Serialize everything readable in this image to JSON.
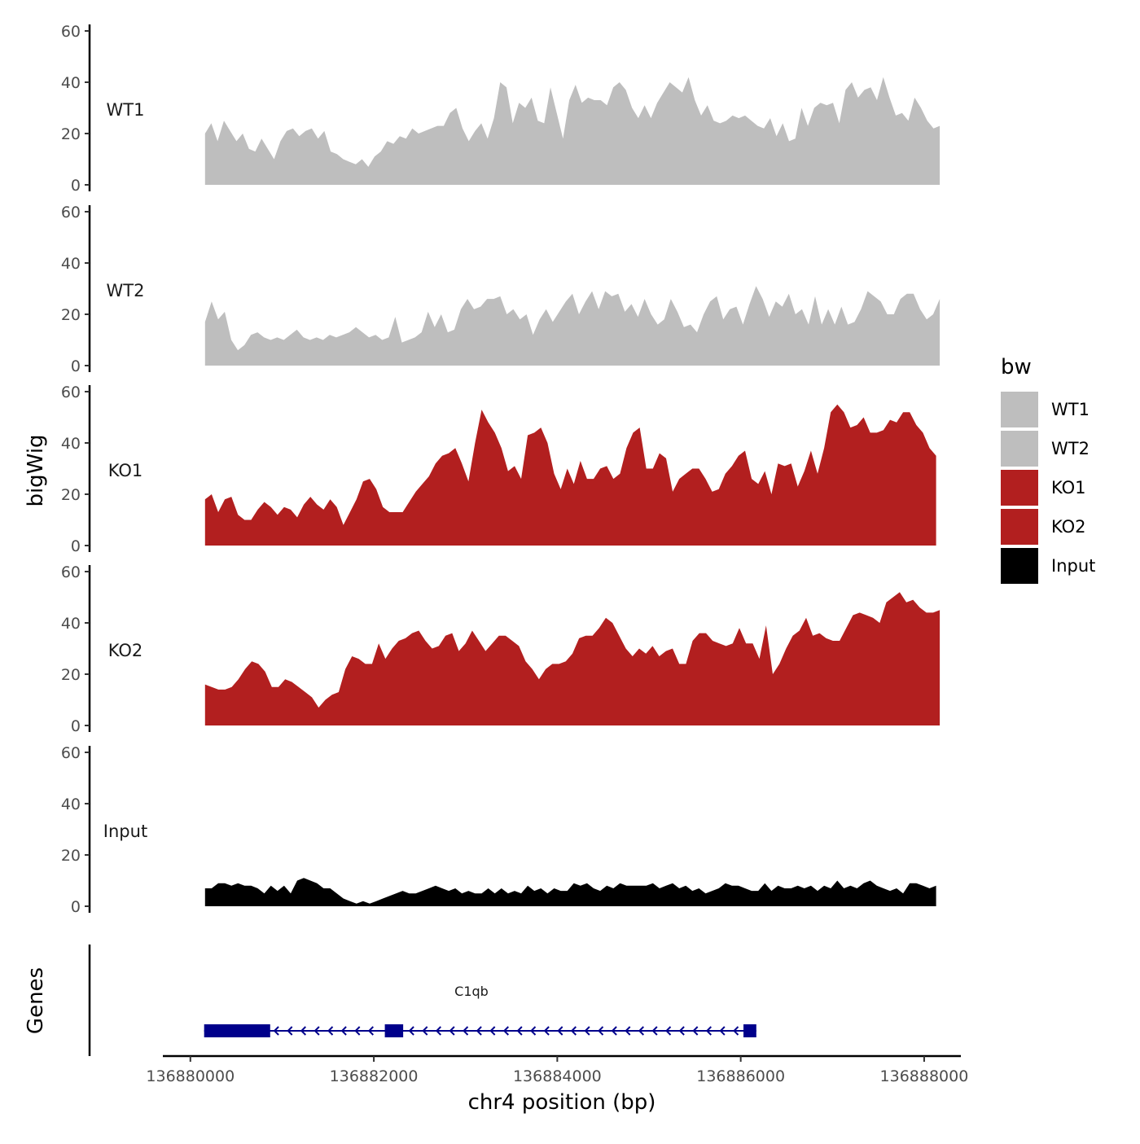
{
  "chart_data": {
    "type": "area",
    "ylabel": "bigWig",
    "xlabel": "chr4 position (bp)",
    "xlim": [
      136879700,
      136888400
    ],
    "ylim": [
      0,
      60
    ],
    "y_ticks": [
      "0",
      "20",
      "40",
      "60"
    ],
    "x_ticks": [
      {
        "value": 136880000,
        "label": "136880000"
      },
      {
        "value": 136882000,
        "label": "136882000"
      },
      {
        "value": 136884000,
        "label": "136884000"
      },
      {
        "value": 136886000,
        "label": "136886000"
      },
      {
        "value": 136888000,
        "label": "136888000"
      }
    ],
    "tracks": [
      {
        "name": "WT1",
        "color": "#bebebe",
        "x_start": 136880160,
        "x_end": 136888170,
        "values": [
          20,
          24,
          17,
          25,
          21,
          17,
          20,
          14,
          13,
          18,
          14,
          10,
          17,
          21,
          22,
          19,
          21,
          22,
          18,
          21,
          13,
          12,
          10,
          9,
          8,
          10,
          7,
          11,
          13,
          17,
          16,
          19,
          18,
          22,
          20,
          21,
          22,
          23,
          23,
          28,
          30,
          22,
          17,
          21,
          24,
          18,
          26,
          40,
          38,
          24,
          32,
          30,
          34,
          25,
          24,
          38,
          28,
          18,
          33,
          39,
          32,
          34,
          33,
          33,
          31,
          38,
          40,
          37,
          30,
          26,
          31,
          26,
          32,
          36,
          40,
          38,
          36,
          42,
          33,
          27,
          31,
          25,
          24,
          25,
          27,
          26,
          27,
          25,
          23,
          22,
          26,
          19,
          24,
          17,
          18,
          30,
          23,
          30,
          32,
          31,
          32,
          24,
          37,
          40,
          34,
          37,
          38,
          33,
          42,
          34,
          27,
          28,
          25,
          34,
          30,
          25,
          22,
          23
        ]
      },
      {
        "name": "WT2",
        "color": "#bebebe",
        "x_start": 136880160,
        "x_end": 136888170,
        "values": [
          17,
          25,
          18,
          21,
          10,
          6,
          8,
          12,
          13,
          11,
          10,
          11,
          10,
          12,
          14,
          11,
          10,
          11,
          10,
          12,
          11,
          12,
          13,
          15,
          13,
          11,
          12,
          10,
          11,
          19,
          9,
          10,
          11,
          13,
          21,
          15,
          20,
          13,
          14,
          22,
          26,
          22,
          23,
          26,
          26,
          27,
          20,
          22,
          18,
          20,
          12,
          18,
          22,
          17,
          21,
          25,
          28,
          20,
          25,
          29,
          22,
          29,
          27,
          28,
          21,
          24,
          19,
          26,
          20,
          16,
          18,
          26,
          21,
          15,
          16,
          13,
          20,
          25,
          27,
          18,
          22,
          23,
          16,
          24,
          31,
          26,
          19,
          25,
          23,
          28,
          20,
          22,
          16,
          27,
          16,
          22,
          16,
          23,
          16,
          17,
          22,
          29,
          27,
          25,
          20,
          20,
          26,
          28,
          28,
          22,
          18,
          20,
          26
        ]
      },
      {
        "name": "KO1",
        "color": "#b21f1f",
        "x_start": 136880160,
        "x_end": 136888130,
        "values": [
          18,
          20,
          13,
          18,
          19,
          12,
          10,
          10,
          14,
          17,
          15,
          12,
          15,
          14,
          11,
          16,
          19,
          16,
          14,
          18,
          15,
          8,
          13,
          18,
          25,
          26,
          22,
          15,
          13,
          13,
          13,
          17,
          21,
          24,
          27,
          32,
          35,
          36,
          38,
          32,
          25,
          40,
          53,
          48,
          44,
          38,
          29,
          31,
          26,
          43,
          44,
          46,
          40,
          28,
          22,
          30,
          24,
          33,
          26,
          26,
          30,
          31,
          26,
          28,
          38,
          44,
          46,
          30,
          30,
          36,
          34,
          21,
          26,
          28,
          30,
          30,
          26,
          21,
          22,
          28,
          31,
          35,
          37,
          26,
          24,
          29,
          20,
          32,
          31,
          32,
          23,
          29,
          37,
          28,
          38,
          52,
          55,
          52,
          46,
          47,
          50,
          44,
          44,
          45,
          49,
          48,
          52,
          52,
          47,
          44,
          38,
          35
        ]
      },
      {
        "name": "KO2",
        "color": "#b21f1f",
        "x_start": 136880160,
        "x_end": 136888170,
        "values": [
          16,
          15,
          14,
          14,
          15,
          18,
          22,
          25,
          24,
          21,
          15,
          15,
          18,
          17,
          15,
          13,
          11,
          7,
          10,
          12,
          13,
          22,
          27,
          26,
          24,
          24,
          32,
          26,
          30,
          33,
          34,
          36,
          37,
          33,
          30,
          31,
          35,
          36,
          29,
          32,
          37,
          33,
          29,
          32,
          35,
          35,
          33,
          31,
          25,
          22,
          18,
          22,
          24,
          24,
          25,
          28,
          34,
          35,
          35,
          38,
          42,
          40,
          35,
          30,
          27,
          30,
          28,
          31,
          27,
          29,
          30,
          24,
          24,
          33,
          36,
          36,
          33,
          32,
          31,
          32,
          38,
          32,
          32,
          26,
          39,
          20,
          24,
          30,
          35,
          37,
          42,
          35,
          36,
          34,
          33,
          33,
          38,
          43,
          44,
          43,
          42,
          40,
          48,
          50,
          52,
          48,
          49,
          46,
          44,
          44,
          45
        ]
      },
      {
        "name": "Input",
        "color": "#000000",
        "x_start": 136880160,
        "x_end": 136888130,
        "values": [
          7,
          7,
          9,
          9,
          8,
          9,
          8,
          8,
          7,
          5,
          8,
          6,
          8,
          5,
          10,
          11,
          10,
          9,
          7,
          7,
          5,
          3,
          2,
          1,
          2,
          1,
          2,
          3,
          4,
          5,
          6,
          5,
          5,
          6,
          7,
          8,
          7,
          6,
          7,
          5,
          6,
          5,
          5,
          7,
          5,
          7,
          5,
          6,
          5,
          8,
          6,
          7,
          5,
          7,
          6,
          6,
          9,
          8,
          9,
          7,
          6,
          8,
          7,
          9,
          8,
          8,
          8,
          8,
          9,
          7,
          8,
          9,
          7,
          8,
          6,
          7,
          5,
          6,
          7,
          9,
          8,
          8,
          7,
          6,
          6,
          9,
          6,
          8,
          7,
          7,
          8,
          7,
          8,
          6,
          8,
          7,
          10,
          7,
          8,
          7,
          9,
          10,
          8,
          7,
          6,
          7,
          5,
          9,
          9,
          8,
          7,
          8
        ]
      }
    ],
    "gene_track": {
      "label": "Genes",
      "genes": [
        {
          "name": "C1qb",
          "strand": "-",
          "start": 136880150,
          "end": 136886170,
          "color": "#00008b",
          "exons": [
            [
              136880150,
              136880870
            ],
            [
              136882120,
              136882320
            ],
            [
              136886030,
              136886170
            ]
          ]
        }
      ]
    },
    "legend": {
      "title": "bw",
      "position": "right",
      "entries": [
        {
          "label": "WT1",
          "color": "#bebebe"
        },
        {
          "label": "WT2",
          "color": "#bebebe"
        },
        {
          "label": "KO1",
          "color": "#b21f1f"
        },
        {
          "label": "KO2",
          "color": "#b21f1f"
        },
        {
          "label": "Input",
          "color": "#000000"
        }
      ]
    }
  }
}
